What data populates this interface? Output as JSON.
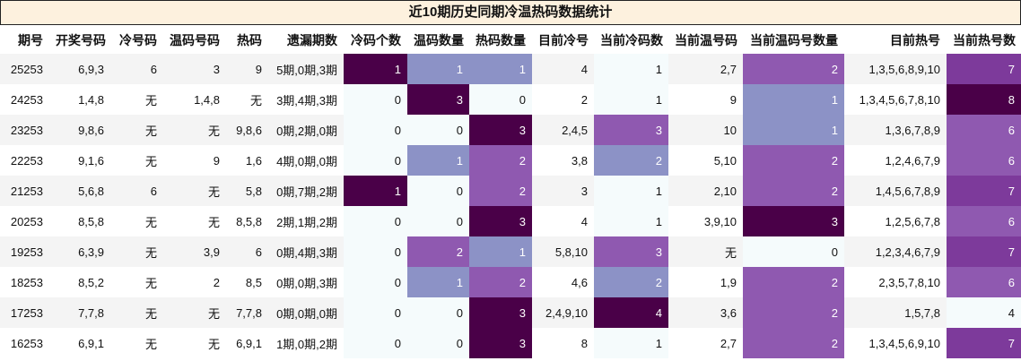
{
  "title": "近10期历史同期冷温热码数据统计",
  "chart_data": {
    "type": "table",
    "columns": [
      "期号",
      "开奖号码",
      "冷号码",
      "温码号码",
      "热码",
      "遗漏期数",
      "冷码个数",
      "温码数量",
      "热码数量",
      "目前冷号",
      "当前冷码数",
      "当前温号码",
      "当前温码号数量",
      "目前热号",
      "当前热号数"
    ],
    "heatmap_columns": [
      6,
      7,
      8,
      10,
      12,
      14
    ],
    "rows": [
      [
        "25253",
        "6,9,3",
        "6",
        "3",
        "9",
        "5期,0期,3期",
        1,
        1,
        1,
        "4",
        1,
        "2,7",
        2,
        "1,3,5,6,8,9,10",
        7
      ],
      [
        "24253",
        "1,4,8",
        "无",
        "1,4,8",
        "无",
        "3期,4期,3期",
        0,
        3,
        0,
        "2",
        1,
        "9",
        1,
        "1,3,4,5,6,7,8,10",
        8
      ],
      [
        "23253",
        "9,8,6",
        "无",
        "无",
        "9,8,6",
        "0期,2期,0期",
        0,
        0,
        3,
        "2,4,5",
        3,
        "10",
        1,
        "1,3,6,7,8,9",
        6
      ],
      [
        "22253",
        "9,1,6",
        "无",
        "9",
        "1,6",
        "4期,0期,0期",
        0,
        1,
        2,
        "3,8",
        2,
        "5,10",
        2,
        "1,2,4,6,7,9",
        6
      ],
      [
        "21253",
        "5,6,8",
        "6",
        "无",
        "5,8",
        "0期,7期,2期",
        1,
        0,
        2,
        "3",
        1,
        "2,10",
        2,
        "1,4,5,6,7,8,9",
        7
      ],
      [
        "20253",
        "8,5,8",
        "无",
        "无",
        "8,5,8",
        "2期,1期,2期",
        0,
        0,
        3,
        "4",
        1,
        "3,9,10",
        3,
        "1,2,5,6,7,8",
        6
      ],
      [
        "19253",
        "6,3,9",
        "无",
        "3,9",
        "6",
        "0期,4期,3期",
        0,
        2,
        1,
        "5,8,10",
        3,
        "无",
        0,
        "1,2,3,4,6,7,9",
        7
      ],
      [
        "18253",
        "8,5,2",
        "无",
        "2",
        "8,5",
        "0期,0期,3期",
        0,
        1,
        2,
        "4,6",
        2,
        "1,9",
        2,
        "2,3,5,7,8,10",
        6
      ],
      [
        "17253",
        "7,7,8",
        "无",
        "无",
        "7,7,8",
        "0期,0期,0期",
        0,
        0,
        3,
        "2,4,9,10",
        4,
        "3,6",
        2,
        "1,5,7,8",
        4
      ],
      [
        "16253",
        "6,9,1",
        "无",
        "无",
        "6,9,1",
        "1期,0期,2期",
        0,
        0,
        3,
        "8",
        1,
        "2,7",
        2,
        "1,3,4,5,6,9,10",
        7
      ]
    ]
  },
  "colors": {
    "palette_light_to_dark": [
      "#f5fbfc",
      "#a9c6e1",
      "#8c92c6",
      "#8f59b0",
      "#7d3a9b",
      "#4a0048"
    ],
    "text_dark": "#111111",
    "text_light": "#ffffff"
  }
}
